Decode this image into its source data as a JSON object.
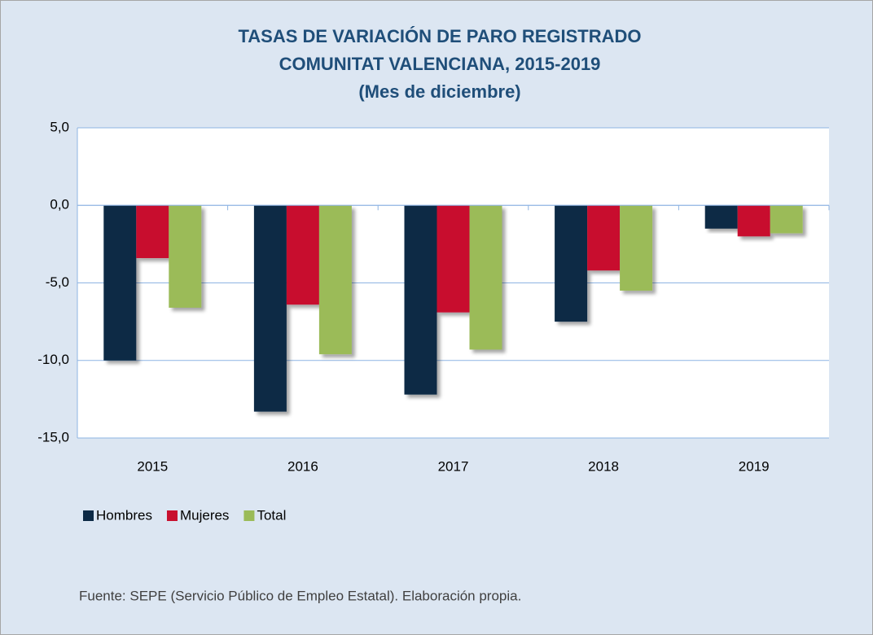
{
  "chart_data": {
    "type": "bar",
    "title": [
      "TASAS DE VARIACIÓN DE PARO REGISTRADO",
      "COMUNITAT VALENCIANA, 2015-2019",
      "(Mes de diciembre)"
    ],
    "categories": [
      "2015",
      "2016",
      "2017",
      "2018",
      "2019"
    ],
    "series": [
      {
        "name": "Hombres",
        "color": "#0d2a45",
        "values": [
          -10.0,
          -13.3,
          -12.2,
          -7.5,
          -1.5
        ]
      },
      {
        "name": "Mujeres",
        "color": "#c8102e",
        "values": [
          -3.4,
          -6.4,
          -6.9,
          -4.2,
          -2.0
        ]
      },
      {
        "name": "Total",
        "color": "#9bbb59",
        "values": [
          -6.6,
          -9.6,
          -9.3,
          -5.5,
          -1.8
        ]
      }
    ],
    "ylim": [
      -15,
      5
    ],
    "yticks": [
      {
        "value": 5,
        "label": "5,0"
      },
      {
        "value": 0,
        "label": "0,0"
      },
      {
        "value": -5,
        "label": "-5,0"
      },
      {
        "value": -10,
        "label": "-10,0"
      },
      {
        "value": -15,
        "label": "-15,0"
      }
    ],
    "grid": true,
    "legend": "bottom-left",
    "source": "Fuente: SEPE (Servicio Público de Empleo Estatal). Elaboración propia."
  }
}
